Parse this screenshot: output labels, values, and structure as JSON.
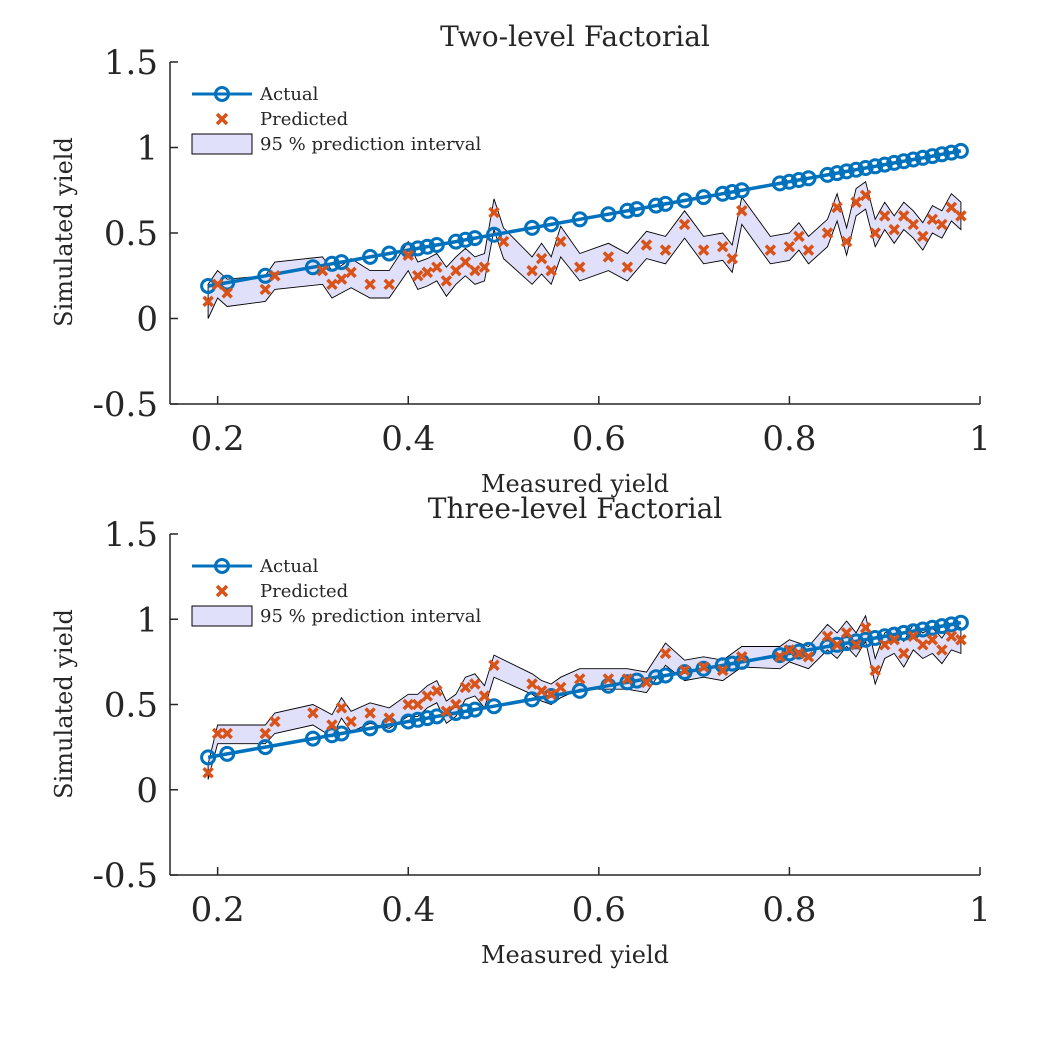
{
  "chart_data": [
    {
      "type": "line",
      "title": "Two-level Factorial",
      "xlabel": "Measured yield",
      "ylabel": "Simulated yield",
      "xlim": [
        0.15,
        1.0
      ],
      "ylim": [
        -0.5,
        1.5
      ],
      "xticks": [
        "0.2",
        "0.4",
        "0.6",
        "0.8",
        "1"
      ],
      "yticks": [
        "-0.5",
        "0",
        "0.5",
        "1",
        "1.5"
      ],
      "grid": false,
      "legend_position": "top-left",
      "legend": [
        "Actual",
        "Predicted",
        "95 % prediction interval"
      ],
      "colors": {
        "actual": "#0072BD",
        "predicted": "#D95319",
        "interval_fill": "#E0E0FA",
        "interval_edge": "#000000"
      },
      "series": [
        {
          "name": "Actual",
          "x": [
            0.19,
            0.21,
            0.25,
            0.3,
            0.32,
            0.33,
            0.36,
            0.38,
            0.4,
            0.41,
            0.42,
            0.43,
            0.45,
            0.46,
            0.47,
            0.49,
            0.53,
            0.55,
            0.58,
            0.61,
            0.63,
            0.64,
            0.66,
            0.67,
            0.69,
            0.71,
            0.73,
            0.74,
            0.75,
            0.79,
            0.8,
            0.81,
            0.82,
            0.84,
            0.85,
            0.86,
            0.87,
            0.88,
            0.89,
            0.9,
            0.91,
            0.92,
            0.93,
            0.94,
            0.95,
            0.96,
            0.97,
            0.98
          ],
          "y": [
            0.19,
            0.21,
            0.25,
            0.3,
            0.32,
            0.33,
            0.36,
            0.38,
            0.4,
            0.41,
            0.42,
            0.43,
            0.45,
            0.46,
            0.47,
            0.49,
            0.53,
            0.55,
            0.58,
            0.61,
            0.63,
            0.64,
            0.66,
            0.67,
            0.69,
            0.71,
            0.73,
            0.74,
            0.75,
            0.79,
            0.8,
            0.81,
            0.82,
            0.84,
            0.85,
            0.86,
            0.87,
            0.88,
            0.89,
            0.9,
            0.91,
            0.92,
            0.93,
            0.94,
            0.95,
            0.96,
            0.97,
            0.98
          ]
        },
        {
          "name": "Predicted",
          "x": [
            0.19,
            0.2,
            0.21,
            0.25,
            0.26,
            0.31,
            0.32,
            0.33,
            0.34,
            0.36,
            0.38,
            0.4,
            0.41,
            0.42,
            0.43,
            0.44,
            0.45,
            0.46,
            0.47,
            0.48,
            0.49,
            0.5,
            0.53,
            0.54,
            0.55,
            0.56,
            0.58,
            0.61,
            0.63,
            0.65,
            0.67,
            0.69,
            0.71,
            0.73,
            0.74,
            0.75,
            0.78,
            0.8,
            0.81,
            0.82,
            0.84,
            0.85,
            0.86,
            0.87,
            0.88,
            0.89,
            0.9,
            0.91,
            0.92,
            0.93,
            0.94,
            0.95,
            0.96,
            0.97,
            0.98
          ],
          "y": [
            0.1,
            0.2,
            0.15,
            0.17,
            0.25,
            0.28,
            0.2,
            0.23,
            0.27,
            0.2,
            0.2,
            0.37,
            0.25,
            0.27,
            0.3,
            0.22,
            0.28,
            0.33,
            0.28,
            0.3,
            0.62,
            0.45,
            0.28,
            0.35,
            0.28,
            0.45,
            0.3,
            0.36,
            0.3,
            0.43,
            0.4,
            0.55,
            0.4,
            0.42,
            0.35,
            0.63,
            0.4,
            0.42,
            0.48,
            0.4,
            0.5,
            0.65,
            0.45,
            0.68,
            0.72,
            0.5,
            0.6,
            0.52,
            0.6,
            0.55,
            0.48,
            0.58,
            0.55,
            0.65,
            0.6
          ]
        },
        {
          "name": "95 % prediction interval",
          "x": [
            0.19,
            0.2,
            0.21,
            0.25,
            0.26,
            0.31,
            0.32,
            0.33,
            0.34,
            0.36,
            0.38,
            0.4,
            0.41,
            0.42,
            0.43,
            0.44,
            0.45,
            0.46,
            0.47,
            0.48,
            0.49,
            0.5,
            0.53,
            0.54,
            0.55,
            0.56,
            0.58,
            0.61,
            0.63,
            0.65,
            0.67,
            0.69,
            0.71,
            0.73,
            0.74,
            0.75,
            0.78,
            0.8,
            0.81,
            0.82,
            0.84,
            0.85,
            0.86,
            0.87,
            0.88,
            0.89,
            0.9,
            0.91,
            0.92,
            0.93,
            0.94,
            0.95,
            0.96,
            0.97,
            0.98
          ],
          "lower": [
            0.0,
            0.12,
            0.07,
            0.1,
            0.17,
            0.2,
            0.12,
            0.15,
            0.18,
            0.12,
            0.12,
            0.28,
            0.17,
            0.19,
            0.22,
            0.13,
            0.2,
            0.25,
            0.2,
            0.22,
            0.52,
            0.35,
            0.2,
            0.26,
            0.2,
            0.36,
            0.22,
            0.28,
            0.22,
            0.35,
            0.32,
            0.47,
            0.32,
            0.34,
            0.27,
            0.55,
            0.32,
            0.34,
            0.4,
            0.32,
            0.42,
            0.57,
            0.37,
            0.6,
            0.64,
            0.42,
            0.52,
            0.44,
            0.52,
            0.47,
            0.4,
            0.5,
            0.47,
            0.57,
            0.52
          ],
          "upper": [
            0.2,
            0.28,
            0.23,
            0.25,
            0.33,
            0.36,
            0.28,
            0.31,
            0.35,
            0.28,
            0.28,
            0.45,
            0.33,
            0.35,
            0.38,
            0.3,
            0.36,
            0.41,
            0.36,
            0.38,
            0.7,
            0.53,
            0.36,
            0.44,
            0.36,
            0.54,
            0.38,
            0.44,
            0.38,
            0.51,
            0.48,
            0.63,
            0.48,
            0.5,
            0.43,
            0.71,
            0.48,
            0.5,
            0.56,
            0.48,
            0.58,
            0.73,
            0.53,
            0.76,
            0.8,
            0.58,
            0.68,
            0.6,
            0.68,
            0.63,
            0.56,
            0.66,
            0.63,
            0.73,
            0.68
          ]
        }
      ]
    },
    {
      "type": "line",
      "title": "Three-level Factorial",
      "xlabel": "Measured yield",
      "ylabel": "Simulated yield",
      "xlim": [
        0.15,
        1.0
      ],
      "ylim": [
        -0.5,
        1.5
      ],
      "xticks": [
        "0.2",
        "0.4",
        "0.6",
        "0.8",
        "1"
      ],
      "yticks": [
        "-0.5",
        "0",
        "0.5",
        "1",
        "1.5"
      ],
      "grid": false,
      "legend_position": "top-left",
      "legend": [
        "Actual",
        "Predicted",
        "95 % prediction interval"
      ],
      "colors": {
        "actual": "#0072BD",
        "predicted": "#D95319",
        "interval_fill": "#E0E0FA",
        "interval_edge": "#000000"
      },
      "series": [
        {
          "name": "Actual",
          "x": [
            0.19,
            0.21,
            0.25,
            0.3,
            0.32,
            0.33,
            0.36,
            0.38,
            0.4,
            0.41,
            0.42,
            0.43,
            0.45,
            0.46,
            0.47,
            0.49,
            0.53,
            0.55,
            0.58,
            0.61,
            0.63,
            0.64,
            0.66,
            0.67,
            0.69,
            0.71,
            0.73,
            0.74,
            0.75,
            0.79,
            0.8,
            0.81,
            0.82,
            0.84,
            0.85,
            0.86,
            0.87,
            0.88,
            0.89,
            0.9,
            0.91,
            0.92,
            0.93,
            0.94,
            0.95,
            0.96,
            0.97,
            0.98
          ],
          "y": [
            0.19,
            0.21,
            0.25,
            0.3,
            0.32,
            0.33,
            0.36,
            0.38,
            0.4,
            0.41,
            0.42,
            0.43,
            0.45,
            0.46,
            0.47,
            0.49,
            0.53,
            0.55,
            0.58,
            0.61,
            0.63,
            0.64,
            0.66,
            0.67,
            0.69,
            0.71,
            0.73,
            0.74,
            0.75,
            0.79,
            0.8,
            0.81,
            0.82,
            0.84,
            0.85,
            0.86,
            0.87,
            0.88,
            0.89,
            0.9,
            0.91,
            0.92,
            0.93,
            0.94,
            0.95,
            0.96,
            0.97,
            0.98
          ]
        },
        {
          "name": "Predicted",
          "x": [
            0.19,
            0.2,
            0.21,
            0.25,
            0.26,
            0.3,
            0.32,
            0.33,
            0.34,
            0.36,
            0.38,
            0.4,
            0.41,
            0.42,
            0.43,
            0.44,
            0.45,
            0.46,
            0.47,
            0.48,
            0.49,
            0.53,
            0.54,
            0.55,
            0.56,
            0.58,
            0.61,
            0.63,
            0.65,
            0.67,
            0.69,
            0.71,
            0.73,
            0.75,
            0.79,
            0.8,
            0.81,
            0.82,
            0.84,
            0.85,
            0.86,
            0.87,
            0.88,
            0.89,
            0.9,
            0.91,
            0.92,
            0.93,
            0.94,
            0.95,
            0.96,
            0.97,
            0.98
          ],
          "y": [
            0.1,
            0.33,
            0.33,
            0.33,
            0.4,
            0.45,
            0.38,
            0.48,
            0.4,
            0.45,
            0.42,
            0.5,
            0.5,
            0.55,
            0.58,
            0.46,
            0.5,
            0.6,
            0.62,
            0.55,
            0.73,
            0.62,
            0.58,
            0.56,
            0.6,
            0.65,
            0.65,
            0.65,
            0.63,
            0.8,
            0.7,
            0.72,
            0.7,
            0.78,
            0.78,
            0.82,
            0.8,
            0.78,
            0.9,
            0.85,
            0.92,
            0.85,
            0.95,
            0.7,
            0.85,
            0.88,
            0.8,
            0.9,
            0.85,
            0.88,
            0.82,
            0.9,
            0.88
          ]
        },
        {
          "name": "95 % prediction interval",
          "x": [
            0.19,
            0.2,
            0.21,
            0.25,
            0.26,
            0.3,
            0.32,
            0.33,
            0.34,
            0.36,
            0.38,
            0.4,
            0.41,
            0.42,
            0.43,
            0.44,
            0.45,
            0.46,
            0.47,
            0.48,
            0.49,
            0.53,
            0.54,
            0.55,
            0.56,
            0.58,
            0.61,
            0.63,
            0.65,
            0.67,
            0.69,
            0.71,
            0.73,
            0.75,
            0.79,
            0.8,
            0.81,
            0.82,
            0.84,
            0.85,
            0.86,
            0.87,
            0.88,
            0.89,
            0.9,
            0.91,
            0.92,
            0.93,
            0.94,
            0.95,
            0.96,
            0.97,
            0.98
          ],
          "lower": [
            0.06,
            0.27,
            0.27,
            0.27,
            0.33,
            0.38,
            0.31,
            0.42,
            0.34,
            0.39,
            0.36,
            0.43,
            0.43,
            0.48,
            0.51,
            0.39,
            0.43,
            0.53,
            0.55,
            0.48,
            0.66,
            0.56,
            0.52,
            0.5,
            0.54,
            0.59,
            0.59,
            0.59,
            0.57,
            0.73,
            0.64,
            0.66,
            0.64,
            0.72,
            0.71,
            0.75,
            0.73,
            0.71,
            0.82,
            0.77,
            0.84,
            0.78,
            0.87,
            0.62,
            0.77,
            0.8,
            0.72,
            0.82,
            0.77,
            0.8,
            0.74,
            0.82,
            0.8
          ],
          "upper": [
            0.15,
            0.38,
            0.38,
            0.38,
            0.45,
            0.5,
            0.44,
            0.54,
            0.46,
            0.51,
            0.48,
            0.56,
            0.56,
            0.61,
            0.64,
            0.52,
            0.56,
            0.66,
            0.68,
            0.61,
            0.79,
            0.68,
            0.64,
            0.62,
            0.66,
            0.71,
            0.71,
            0.71,
            0.69,
            0.86,
            0.76,
            0.78,
            0.76,
            0.84,
            0.84,
            0.88,
            0.86,
            0.84,
            0.97,
            0.92,
            0.99,
            0.92,
            1.02,
            0.77,
            0.92,
            0.95,
            0.87,
            0.97,
            0.92,
            0.95,
            0.89,
            0.97,
            0.95
          ]
        }
      ]
    }
  ]
}
